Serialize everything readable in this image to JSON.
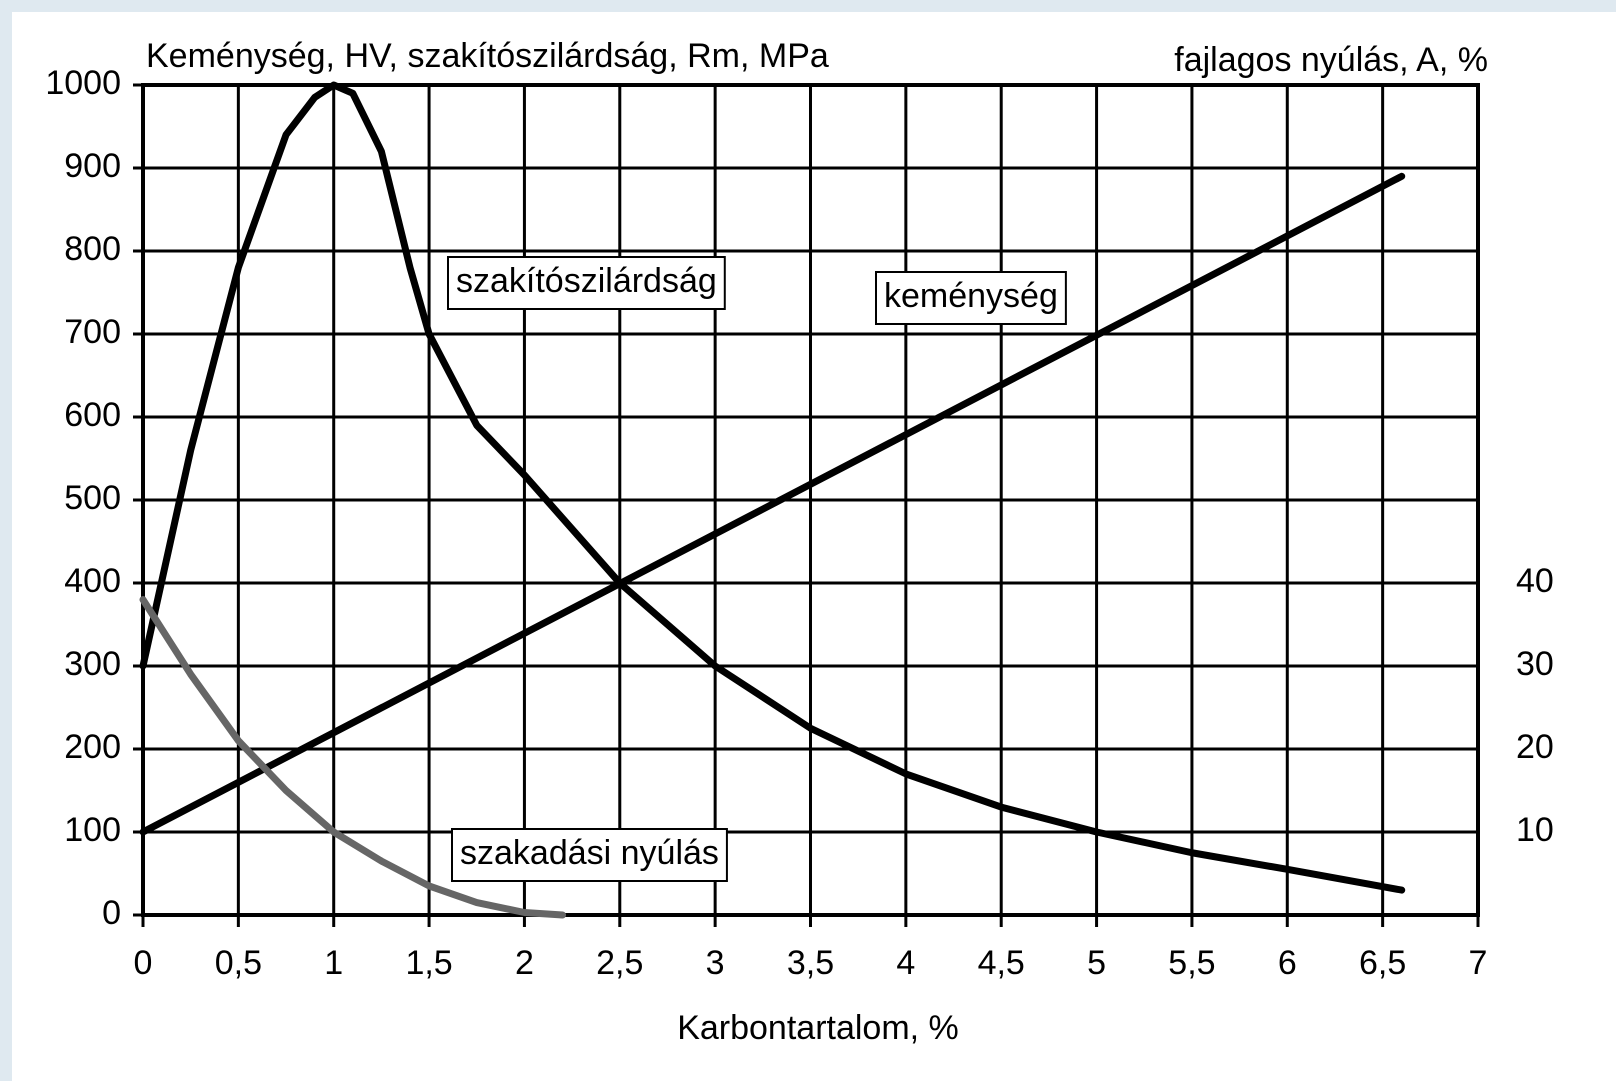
{
  "chart_data": {
    "type": "line",
    "y_label": "Keménység, HV, szakítószilárdság, Rm, MPa",
    "y2_label": "fajlagos nyúlás, A, %",
    "x_label": "Karbontartalom, %",
    "xlim": [
      0,
      7
    ],
    "xticks": [
      0,
      {
        "value": 0.5,
        "label": "0,5"
      },
      1,
      {
        "value": 1.5,
        "label": "1,5"
      },
      2,
      {
        "value": 2.5,
        "label": "2,5"
      },
      3,
      {
        "value": 3.5,
        "label": "3,5"
      },
      4,
      {
        "value": 4.5,
        "label": "4,5"
      },
      5,
      {
        "value": 5.5,
        "label": "5,5"
      },
      6,
      {
        "value": 6.5,
        "label": "6,5"
      },
      7
    ],
    "ylim": [
      0,
      1000
    ],
    "yticks": [
      0,
      100,
      200,
      300,
      400,
      500,
      600,
      700,
      800,
      900,
      1000
    ],
    "y2lim": [
      0,
      100
    ],
    "y2ticks": [
      10,
      20,
      30,
      40
    ],
    "grid": true,
    "series": [
      {
        "name": "szakítószilárdság",
        "color": "#000000",
        "x": [
          0,
          0.25,
          0.5,
          0.75,
          0.9,
          1,
          1.1,
          1.25,
          1.4,
          1.5,
          1.75,
          2,
          2.5,
          3,
          3.5,
          4,
          4.5,
          5,
          5.5,
          6,
          6.6
        ],
        "values": [
          300,
          560,
          780,
          940,
          985,
          1000,
          990,
          920,
          780,
          700,
          590,
          530,
          400,
          300,
          225,
          170,
          130,
          100,
          75,
          55,
          30
        ]
      },
      {
        "name": "keménység",
        "color": "#000000",
        "x": [
          0,
          6.6
        ],
        "values": [
          100,
          890
        ]
      },
      {
        "name": "szakadási nyúlás",
        "color": "#666666",
        "axis": "y2",
        "x": [
          0,
          0.25,
          0.5,
          0.75,
          1,
          1.25,
          1.5,
          1.75,
          2,
          2.2
        ],
        "values": [
          38,
          29,
          21,
          15,
          10,
          6.5,
          3.5,
          1.5,
          0.3,
          0
        ]
      }
    ]
  }
}
